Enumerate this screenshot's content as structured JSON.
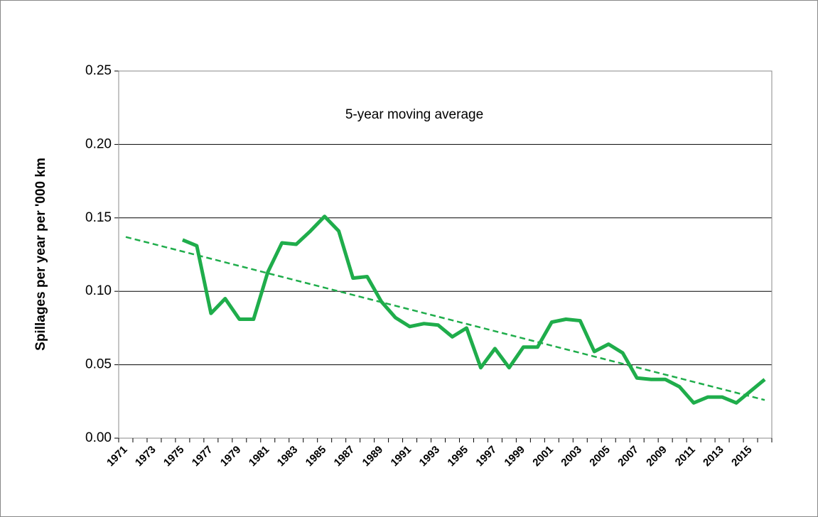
{
  "chart_data": {
    "type": "line",
    "y_label": "Spillages per year per '000 km",
    "annotation": "5-year moving average",
    "categories": [
      "1971",
      null,
      "1973",
      null,
      "1975",
      null,
      "1977",
      null,
      "1979",
      null,
      "1981",
      null,
      "1983",
      null,
      "1985",
      null,
      "1987",
      null,
      "1989",
      null,
      "1991",
      null,
      "1993",
      null,
      "1995",
      null,
      "1997",
      null,
      "1999",
      null,
      "2001",
      null,
      "2003",
      null,
      "2005",
      null,
      "2007",
      null,
      "2009",
      null,
      "2011",
      null,
      "2013",
      null,
      "2015",
      null
    ],
    "series": [
      {
        "color": "#1fad4b",
        "values": [
          null,
          null,
          null,
          null,
          0.135,
          0.131,
          0.085,
          0.095,
          0.081,
          0.081,
          0.113,
          0.133,
          0.132,
          0.141,
          0.151,
          0.141,
          0.109,
          0.11,
          0.093,
          0.082,
          0.076,
          0.078,
          0.077,
          0.069,
          0.075,
          0.048,
          0.061,
          0.048,
          0.062,
          0.062,
          0.079,
          0.081,
          0.08,
          0.059,
          0.064,
          0.058,
          0.041,
          0.04,
          0.04,
          0.035,
          0.024,
          0.028,
          0.028,
          0.024,
          0.032,
          0.04
        ]
      }
    ],
    "trendline": {
      "color": "#1fad4b",
      "dashed": true,
      "values": [
        0.137,
        0.026
      ]
    },
    "ylim": [
      0,
      0.25
    ],
    "yticks": [
      {
        "value": 0,
        "label": "0.00"
      },
      {
        "value": 0.05,
        "label": "0.05"
      },
      {
        "value": 0.1,
        "label": "0.10"
      },
      {
        "value": 0.15,
        "label": "0.15"
      },
      {
        "value": 0.2,
        "label": "0.20"
      },
      {
        "value": 0.25,
        "label": "0.25"
      }
    ],
    "grid": true
  }
}
